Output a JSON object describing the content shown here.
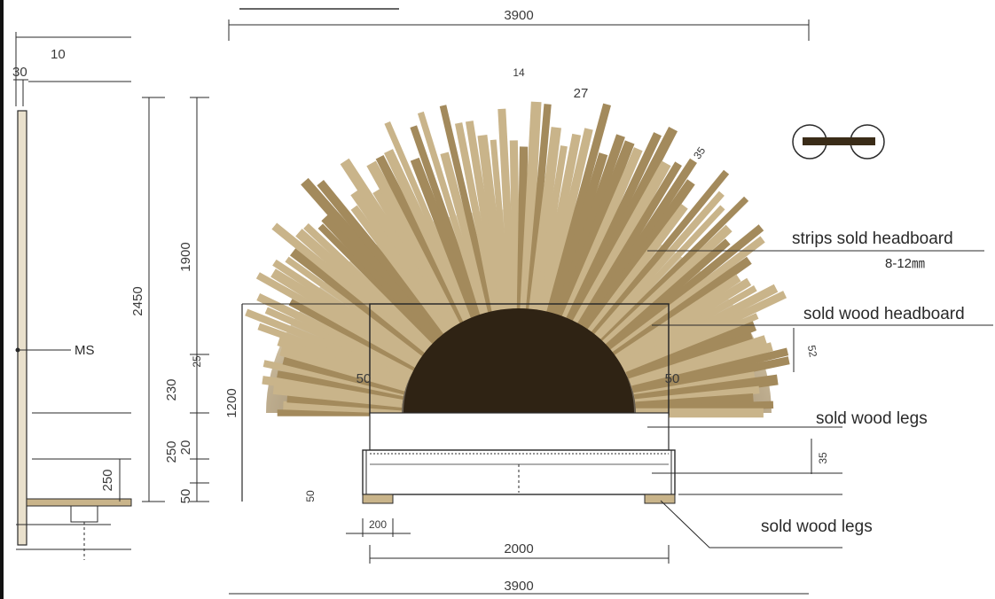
{
  "colors": {
    "wood_light": "#c9b48a",
    "wood_mid": "#a38a5c",
    "wood_dark": "#3a2c18",
    "line": "#2a2a2a",
    "paper": "#ffffff"
  },
  "labels": {
    "strips_headboard": "strips sold headboard",
    "strip_size": "8-12㎜",
    "wood_headboard": "sold wood headboard",
    "legs_upper": "sold wood legs",
    "legs_lower": "sold wood legs",
    "ms": "MS"
  },
  "dimensions": {
    "top_width": "3900",
    "bottom_width": "3900",
    "bed_width": "2000",
    "leg_width": "200",
    "total_height": "2450",
    "strip_height": "1900",
    "panel_height": "1200",
    "side_230": "230",
    "side_250a": "250",
    "side_250b": "250",
    "side_20": "20",
    "side_50a": "50",
    "side_50b": "50",
    "side_30": "30",
    "side_10": "10",
    "inner_50_left": "50",
    "inner_50_right": "50",
    "strip_27": "27",
    "strip_35": "35",
    "strip_14": "14",
    "right_52": "52",
    "right_35": "35",
    "rail_25": "25"
  }
}
